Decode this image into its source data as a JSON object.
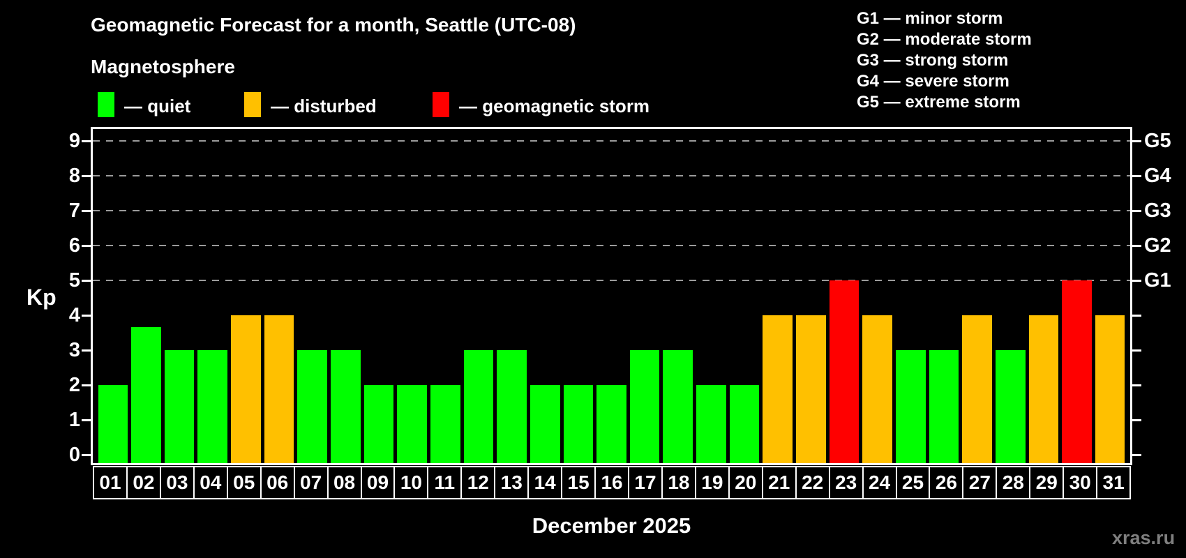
{
  "title": "Geomagnetic Forecast for a month, Seattle (UTC-08)",
  "subtitle": "Magnetosphere",
  "legend": {
    "items": [
      {
        "key": "quiet",
        "label": "— quiet",
        "color": "#00ff00"
      },
      {
        "key": "disturbed",
        "label": "— disturbed",
        "color": "#ffc000"
      },
      {
        "key": "storm",
        "label": "— geomagnetic storm",
        "color": "#ff0000"
      }
    ]
  },
  "g_legend": [
    "G1 — minor storm",
    "G2 — moderate storm",
    "G3 — strong storm",
    "G4 — severe storm",
    "G5 — extreme storm"
  ],
  "watermark": "xras.ru",
  "chart_data": {
    "type": "bar",
    "title": "Geomagnetic Forecast for a month, Seattle (UTC-08)",
    "xlabel": "December 2025",
    "ylabel": "Kp",
    "ylim": [
      0,
      9
    ],
    "grid": "dashed horizontal gray lines at Kp 5,6,7,8,9 only (G-storm levels)",
    "legend_position": "color swatches top-left, G-scale text list top-right",
    "categories": [
      "01",
      "02",
      "03",
      "04",
      "05",
      "06",
      "07",
      "08",
      "09",
      "10",
      "11",
      "12",
      "13",
      "14",
      "15",
      "16",
      "17",
      "18",
      "19",
      "20",
      "21",
      "22",
      "23",
      "24",
      "25",
      "26",
      "27",
      "28",
      "29",
      "30",
      "31"
    ],
    "values": [
      2,
      3.67,
      3,
      3,
      4,
      4,
      3,
      3,
      2,
      2,
      2,
      3,
      3,
      2,
      2,
      2,
      3,
      3,
      2,
      2,
      4,
      4,
      5,
      4,
      3,
      3,
      4,
      3,
      4,
      5,
      4
    ],
    "statuses": [
      "quiet",
      "quiet",
      "quiet",
      "quiet",
      "disturbed",
      "disturbed",
      "quiet",
      "quiet",
      "quiet",
      "quiet",
      "quiet",
      "quiet",
      "quiet",
      "quiet",
      "quiet",
      "quiet",
      "quiet",
      "quiet",
      "quiet",
      "quiet",
      "disturbed",
      "disturbed",
      "storm",
      "disturbed",
      "quiet",
      "quiet",
      "disturbed",
      "quiet",
      "disturbed",
      "storm",
      "disturbed"
    ],
    "status_colors": {
      "quiet": "#00ff00",
      "disturbed": "#ffc000",
      "storm": "#ff0000"
    },
    "yticks_left": [
      0,
      1,
      2,
      3,
      4,
      5,
      6,
      7,
      8,
      9
    ],
    "yticks_right": [
      {
        "kp": 5,
        "label": "G1"
      },
      {
        "kp": 6,
        "label": "G2"
      },
      {
        "kp": 7,
        "label": "G3"
      },
      {
        "kp": 8,
        "label": "G4"
      },
      {
        "kp": 9,
        "label": "G5"
      }
    ]
  }
}
